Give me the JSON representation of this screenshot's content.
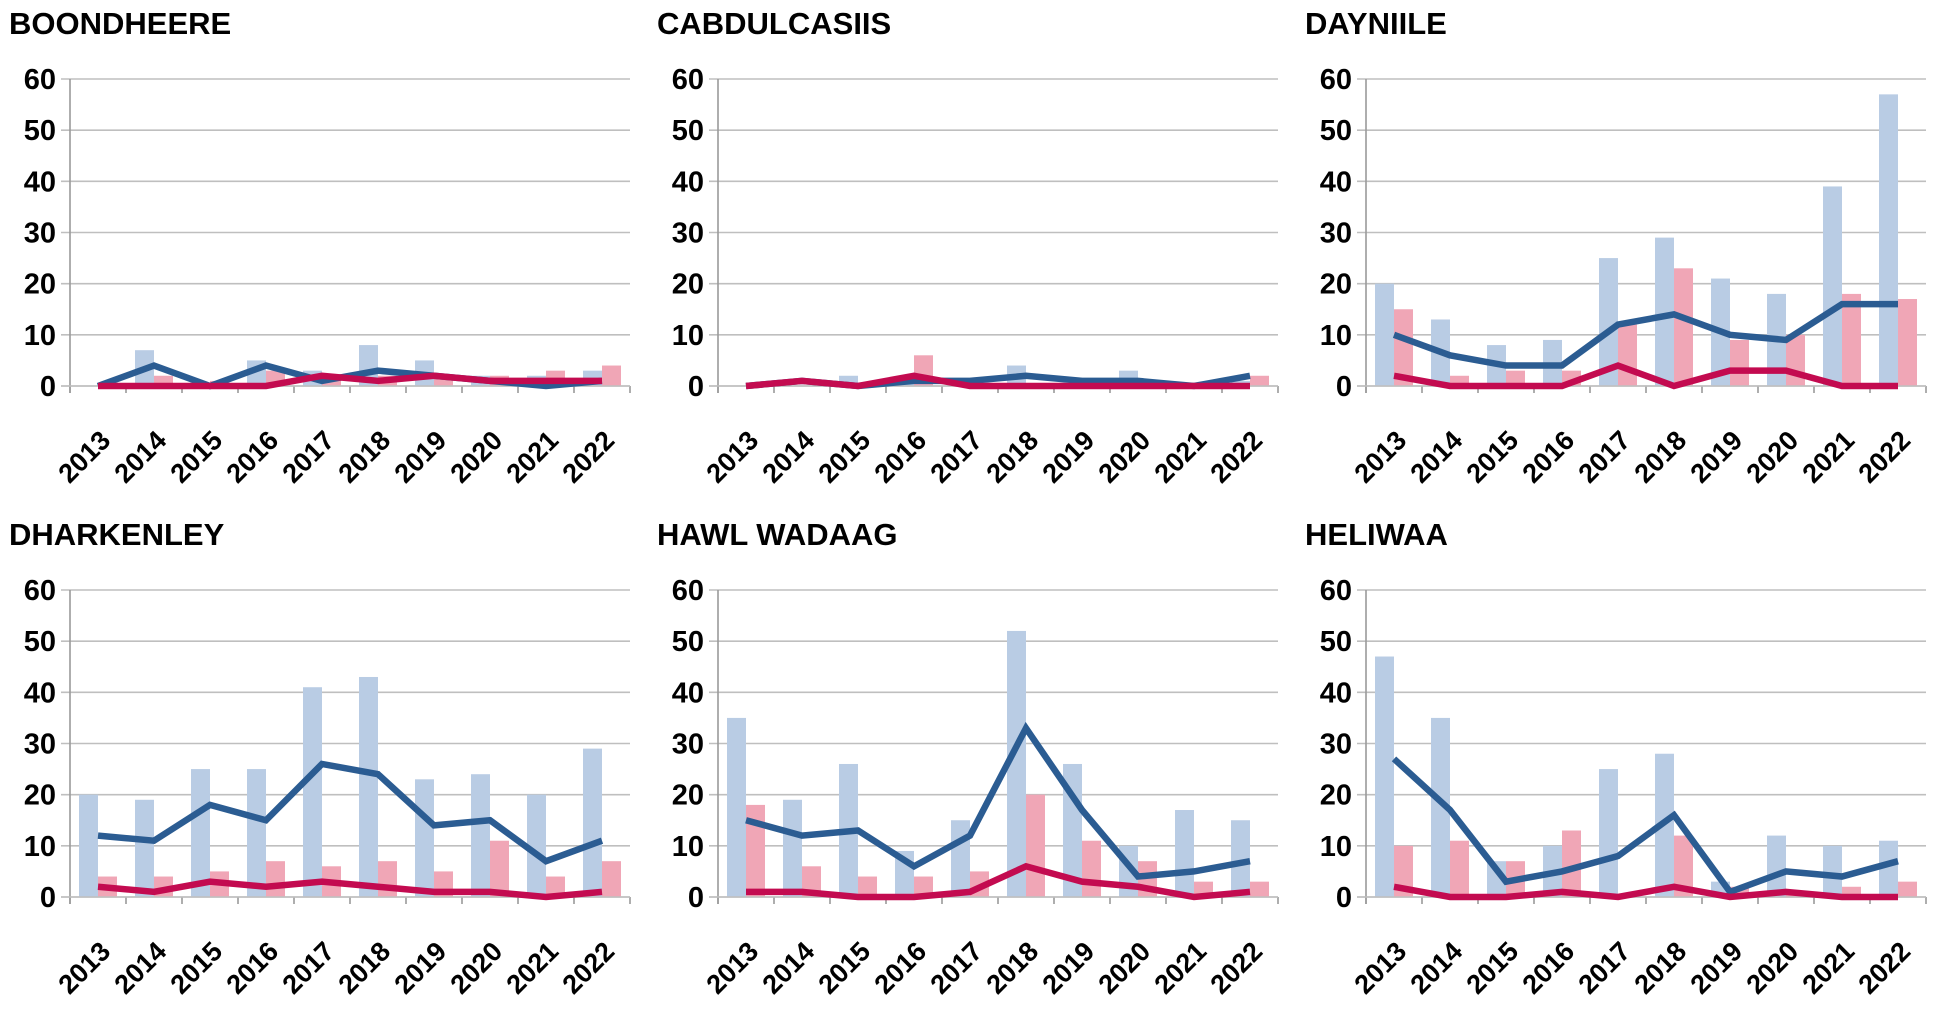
{
  "page": {
    "background": "#ffffff"
  },
  "colors": {
    "bar_blue": "#b9cce4",
    "bar_pink": "#f0a6b6",
    "line_blue": "#2b5c92",
    "line_red": "#c30b50",
    "gridline": "#bfbfbf",
    "axis": "#9a9a9a",
    "text": "#000000"
  },
  "axes": {
    "ylim": [
      0,
      60
    ],
    "yticks": [
      0,
      10,
      20,
      30,
      40,
      50,
      60
    ],
    "grid": true,
    "legend": "none",
    "x_label_rotation": -45
  },
  "chart_data": [
    {
      "type": "bar",
      "title": "BOONDHEERE",
      "categories": [
        "2013",
        "2014",
        "2015",
        "2016",
        "2017",
        "2018",
        "2019",
        "2020",
        "2021",
        "2022"
      ],
      "series": [
        {
          "name": "blue-bars",
          "kind": "bar",
          "color_key": "bar_blue",
          "values": [
            0,
            7,
            0,
            5,
            3,
            8,
            5,
            2,
            2,
            3
          ]
        },
        {
          "name": "pink-bars",
          "kind": "bar",
          "color_key": "bar_pink",
          "values": [
            0,
            2,
            1,
            3,
            2,
            2,
            2,
            2,
            3,
            4
          ]
        },
        {
          "name": "blue-line",
          "kind": "line",
          "color_key": "line_blue",
          "values": [
            0,
            4,
            0,
            4,
            1,
            3,
            2,
            1,
            0,
            1
          ]
        },
        {
          "name": "red-line",
          "kind": "line",
          "color_key": "line_red",
          "values": [
            0,
            0,
            0,
            0,
            2,
            1,
            2,
            1,
            1,
            1
          ]
        }
      ],
      "ylim": [
        0,
        60
      ]
    },
    {
      "type": "bar",
      "title": "CABDULCASIIS",
      "categories": [
        "2013",
        "2014",
        "2015",
        "2016",
        "2017",
        "2018",
        "2019",
        "2020",
        "2021",
        "2022"
      ],
      "series": [
        {
          "name": "blue-bars",
          "kind": "bar",
          "color_key": "bar_blue",
          "values": [
            0,
            0,
            2,
            1,
            0,
            4,
            0,
            3,
            0,
            1
          ]
        },
        {
          "name": "pink-bars",
          "kind": "bar",
          "color_key": "bar_pink",
          "values": [
            0,
            0,
            0,
            6,
            0,
            0,
            0,
            1,
            0,
            2
          ]
        },
        {
          "name": "blue-line",
          "kind": "line",
          "color_key": "line_blue",
          "values": [
            0,
            1,
            0,
            1,
            1,
            2,
            1,
            1,
            0,
            2
          ]
        },
        {
          "name": "red-line",
          "kind": "line",
          "color_key": "line_red",
          "values": [
            0,
            1,
            0,
            2,
            0,
            0,
            0,
            0,
            0,
            0
          ]
        }
      ],
      "ylim": [
        0,
        60
      ]
    },
    {
      "type": "bar",
      "title": "DAYNIILE",
      "categories": [
        "2013",
        "2014",
        "2015",
        "2016",
        "2017",
        "2018",
        "2019",
        "2020",
        "2021",
        "2022"
      ],
      "series": [
        {
          "name": "blue-bars",
          "kind": "bar",
          "color_key": "bar_blue",
          "values": [
            20,
            13,
            8,
            9,
            25,
            29,
            21,
            18,
            39,
            57
          ]
        },
        {
          "name": "pink-bars",
          "kind": "bar",
          "color_key": "bar_pink",
          "values": [
            15,
            2,
            3,
            3,
            12,
            23,
            9,
            10,
            18,
            17
          ]
        },
        {
          "name": "blue-line",
          "kind": "line",
          "color_key": "line_blue",
          "values": [
            10,
            6,
            4,
            4,
            12,
            14,
            10,
            9,
            16,
            16
          ]
        },
        {
          "name": "red-line",
          "kind": "line",
          "color_key": "line_red",
          "values": [
            2,
            0,
            0,
            0,
            4,
            0,
            3,
            3,
            0,
            0
          ]
        }
      ],
      "ylim": [
        0,
        60
      ]
    },
    {
      "type": "bar",
      "title": "DHARKENLEY",
      "categories": [
        "2013",
        "2014",
        "2015",
        "2016",
        "2017",
        "2018",
        "2019",
        "2020",
        "2021",
        "2022"
      ],
      "series": [
        {
          "name": "blue-bars",
          "kind": "bar",
          "color_key": "bar_blue",
          "values": [
            20,
            19,
            25,
            25,
            41,
            43,
            23,
            24,
            20,
            29
          ]
        },
        {
          "name": "pink-bars",
          "kind": "bar",
          "color_key": "bar_pink",
          "values": [
            4,
            4,
            5,
            7,
            6,
            7,
            5,
            11,
            4,
            7
          ]
        },
        {
          "name": "blue-line",
          "kind": "line",
          "color_key": "line_blue",
          "values": [
            12,
            11,
            18,
            15,
            26,
            24,
            14,
            15,
            7,
            11
          ]
        },
        {
          "name": "red-line",
          "kind": "line",
          "color_key": "line_red",
          "values": [
            2,
            1,
            3,
            2,
            3,
            2,
            1,
            1,
            0,
            1
          ]
        }
      ],
      "ylim": [
        0,
        60
      ]
    },
    {
      "type": "bar",
      "title": "HAWL WADAAG",
      "categories": [
        "2013",
        "2014",
        "2015",
        "2016",
        "2017",
        "2018",
        "2019",
        "2020",
        "2021",
        "2022"
      ],
      "series": [
        {
          "name": "blue-bars",
          "kind": "bar",
          "color_key": "bar_blue",
          "values": [
            35,
            19,
            26,
            9,
            15,
            52,
            26,
            10,
            17,
            15
          ]
        },
        {
          "name": "pink-bars",
          "kind": "bar",
          "color_key": "bar_pink",
          "values": [
            18,
            6,
            4,
            4,
            5,
            20,
            11,
            7,
            3,
            3
          ]
        },
        {
          "name": "blue-line",
          "kind": "line",
          "color_key": "line_blue",
          "values": [
            15,
            12,
            13,
            6,
            12,
            33,
            17,
            4,
            5,
            7
          ]
        },
        {
          "name": "red-line",
          "kind": "line",
          "color_key": "line_red",
          "values": [
            1,
            1,
            0,
            0,
            1,
            6,
            3,
            2,
            0,
            1
          ]
        }
      ],
      "ylim": [
        0,
        60
      ]
    },
    {
      "type": "bar",
      "title": "HELIWAA",
      "categories": [
        "2013",
        "2014",
        "2015",
        "2016",
        "2017",
        "2018",
        "2019",
        "2020",
        "2021",
        "2022"
      ],
      "series": [
        {
          "name": "blue-bars",
          "kind": "bar",
          "color_key": "bar_blue",
          "values": [
            47,
            35,
            7,
            10,
            25,
            28,
            3,
            12,
            10,
            11
          ]
        },
        {
          "name": "pink-bars",
          "kind": "bar",
          "color_key": "bar_pink",
          "values": [
            10,
            11,
            7,
            13,
            0,
            12,
            2,
            1,
            2,
            3
          ]
        },
        {
          "name": "blue-line",
          "kind": "line",
          "color_key": "line_blue",
          "values": [
            27,
            17,
            3,
            5,
            8,
            16,
            1,
            5,
            4,
            7
          ]
        },
        {
          "name": "red-line",
          "kind": "line",
          "color_key": "line_red",
          "values": [
            2,
            0,
            0,
            1,
            0,
            2,
            0,
            1,
            0,
            0
          ]
        }
      ],
      "ylim": [
        0,
        60
      ]
    }
  ]
}
